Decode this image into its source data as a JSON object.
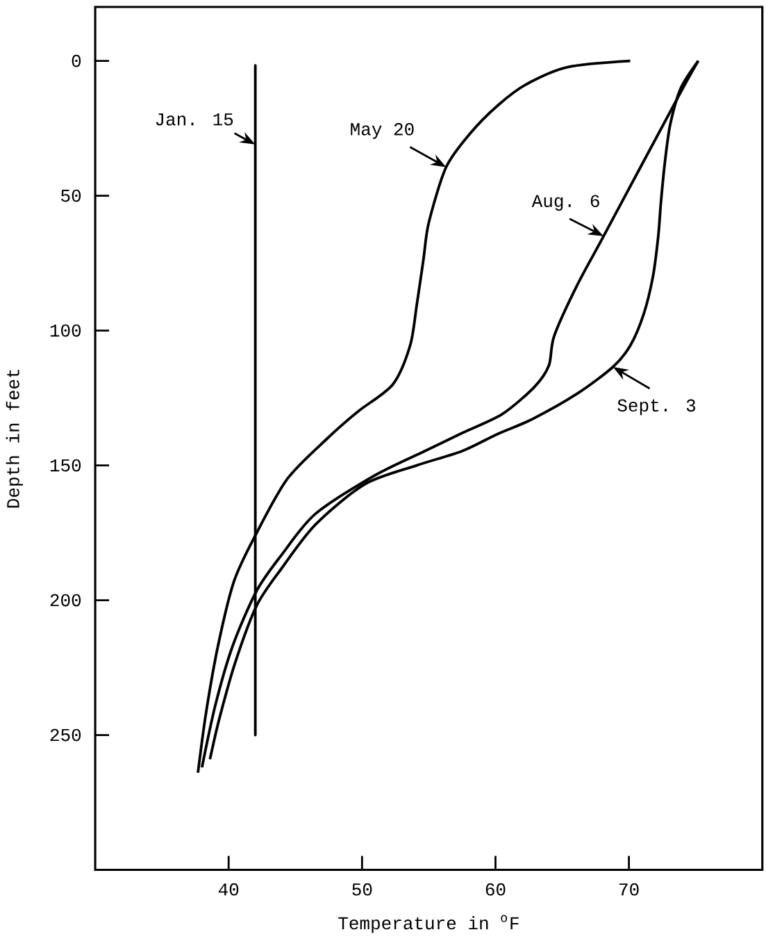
{
  "chart_data": {
    "type": "line",
    "xlabel": "Temperature in $^{o}$F",
    "ylabel": "Depth in feet",
    "xlim": [
      30,
      80
    ],
    "ylim": [
      300,
      -20
    ],
    "xticks": [
      40,
      50,
      60,
      70
    ],
    "yticks": [
      0,
      50,
      100,
      150,
      200,
      250
    ],
    "line_style": "solid",
    "series": [
      {
        "name": "Jan. 15",
        "color": "#000000",
        "x": [
          42,
          42,
          42
        ],
        "values": [
          2,
          31,
          250
        ]
      },
      {
        "name": "May 20",
        "color": "#000000",
        "x": [
          70.1,
          65.4,
          62.3,
          60.2,
          58.1,
          56.3,
          55.0,
          54.6,
          54.1,
          53.6,
          52.3,
          49.7,
          47.4,
          44.4,
          42.0,
          40.4,
          39.2,
          38.3,
          37.7
        ],
        "values": [
          0,
          2.3,
          8.7,
          16.4,
          26.9,
          39.4,
          60,
          73.7,
          90.5,
          105.6,
          120,
          130,
          140,
          155,
          176,
          193,
          217,
          242,
          264
        ]
      },
      {
        "name": "Aug. 6",
        "color": "#000000",
        "x": [
          75.2,
          73.7,
          68.1,
          66.1,
          64.4,
          64.0,
          62.9,
          60.5,
          57.5,
          54.7,
          51.0,
          46.5,
          44.0,
          42.1,
          40.3,
          39.0,
          38.0
        ],
        "values": [
          0,
          13.3,
          65,
          83.4,
          102,
          113,
          121,
          131,
          138,
          144.7,
          153.6,
          168,
          183,
          196.5,
          217,
          239,
          262
        ]
      },
      {
        "name": "Sept. 3",
        "color": "#000000",
        "x": [
          75.2,
          73.9,
          73.1,
          72.7,
          72.4,
          72.2,
          71.8,
          71.1,
          70.1,
          68.8,
          66.1,
          62.7,
          60.1,
          57.5,
          54.1,
          50.2,
          46.5,
          44.0,
          42.1,
          40.5,
          39.3,
          38.6
        ],
        "values": [
          0,
          10,
          23.5,
          37.5,
          52.4,
          65,
          80,
          94,
          105.6,
          113.5,
          123.5,
          133,
          138.5,
          144.7,
          150,
          157,
          172,
          188,
          202,
          223,
          244,
          259
        ]
      }
    ]
  }
}
